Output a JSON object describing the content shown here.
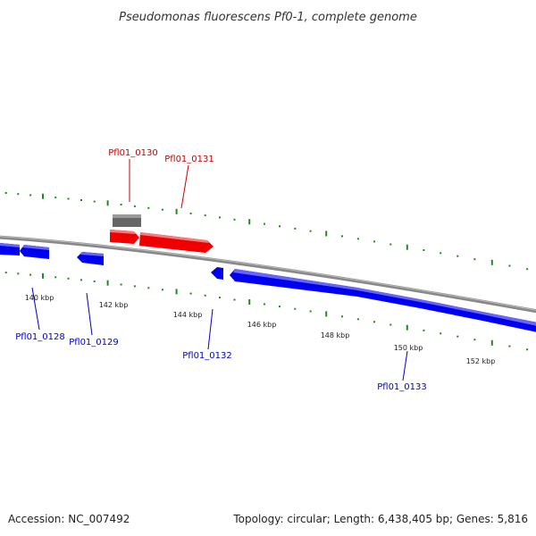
{
  "map": {
    "title": "Pseudomonas fluorescens Pf0-1, complete genome",
    "accession": "Accession: NC_007492",
    "summary": "Topology: circular; Length: 6,438,405 bp; Genes: 5,816"
  },
  "colors": {
    "forward_gene": "#ee0000",
    "reverse_gene": "#0000ee",
    "other_feature": "#666666",
    "backbone": "#888888",
    "tick": "#228822",
    "forward_label": "#cc0000",
    "reverse_label": "#0000cc"
  },
  "scale": {
    "unit": "kbp",
    "tick_labels": [
      "140 kbp",
      "142 kbp",
      "144 kbp",
      "146 kbp",
      "148 kbp",
      "150 kbp",
      "152 kbp"
    ]
  },
  "genes": [
    {
      "name": "Pfl01_0128",
      "strand": "reverse",
      "labeled": true
    },
    {
      "name": "Pfl01_0129",
      "strand": "reverse",
      "labeled": true
    },
    {
      "name": "Pfl01_0130",
      "strand": "forward",
      "labeled": true
    },
    {
      "name": "Pfl01_0131",
      "strand": "forward",
      "labeled": true
    },
    {
      "name": "Pfl01_0132",
      "strand": "reverse",
      "labeled": true
    },
    {
      "name": "Pfl01_0133",
      "strand": "reverse",
      "labeled": true
    }
  ]
}
